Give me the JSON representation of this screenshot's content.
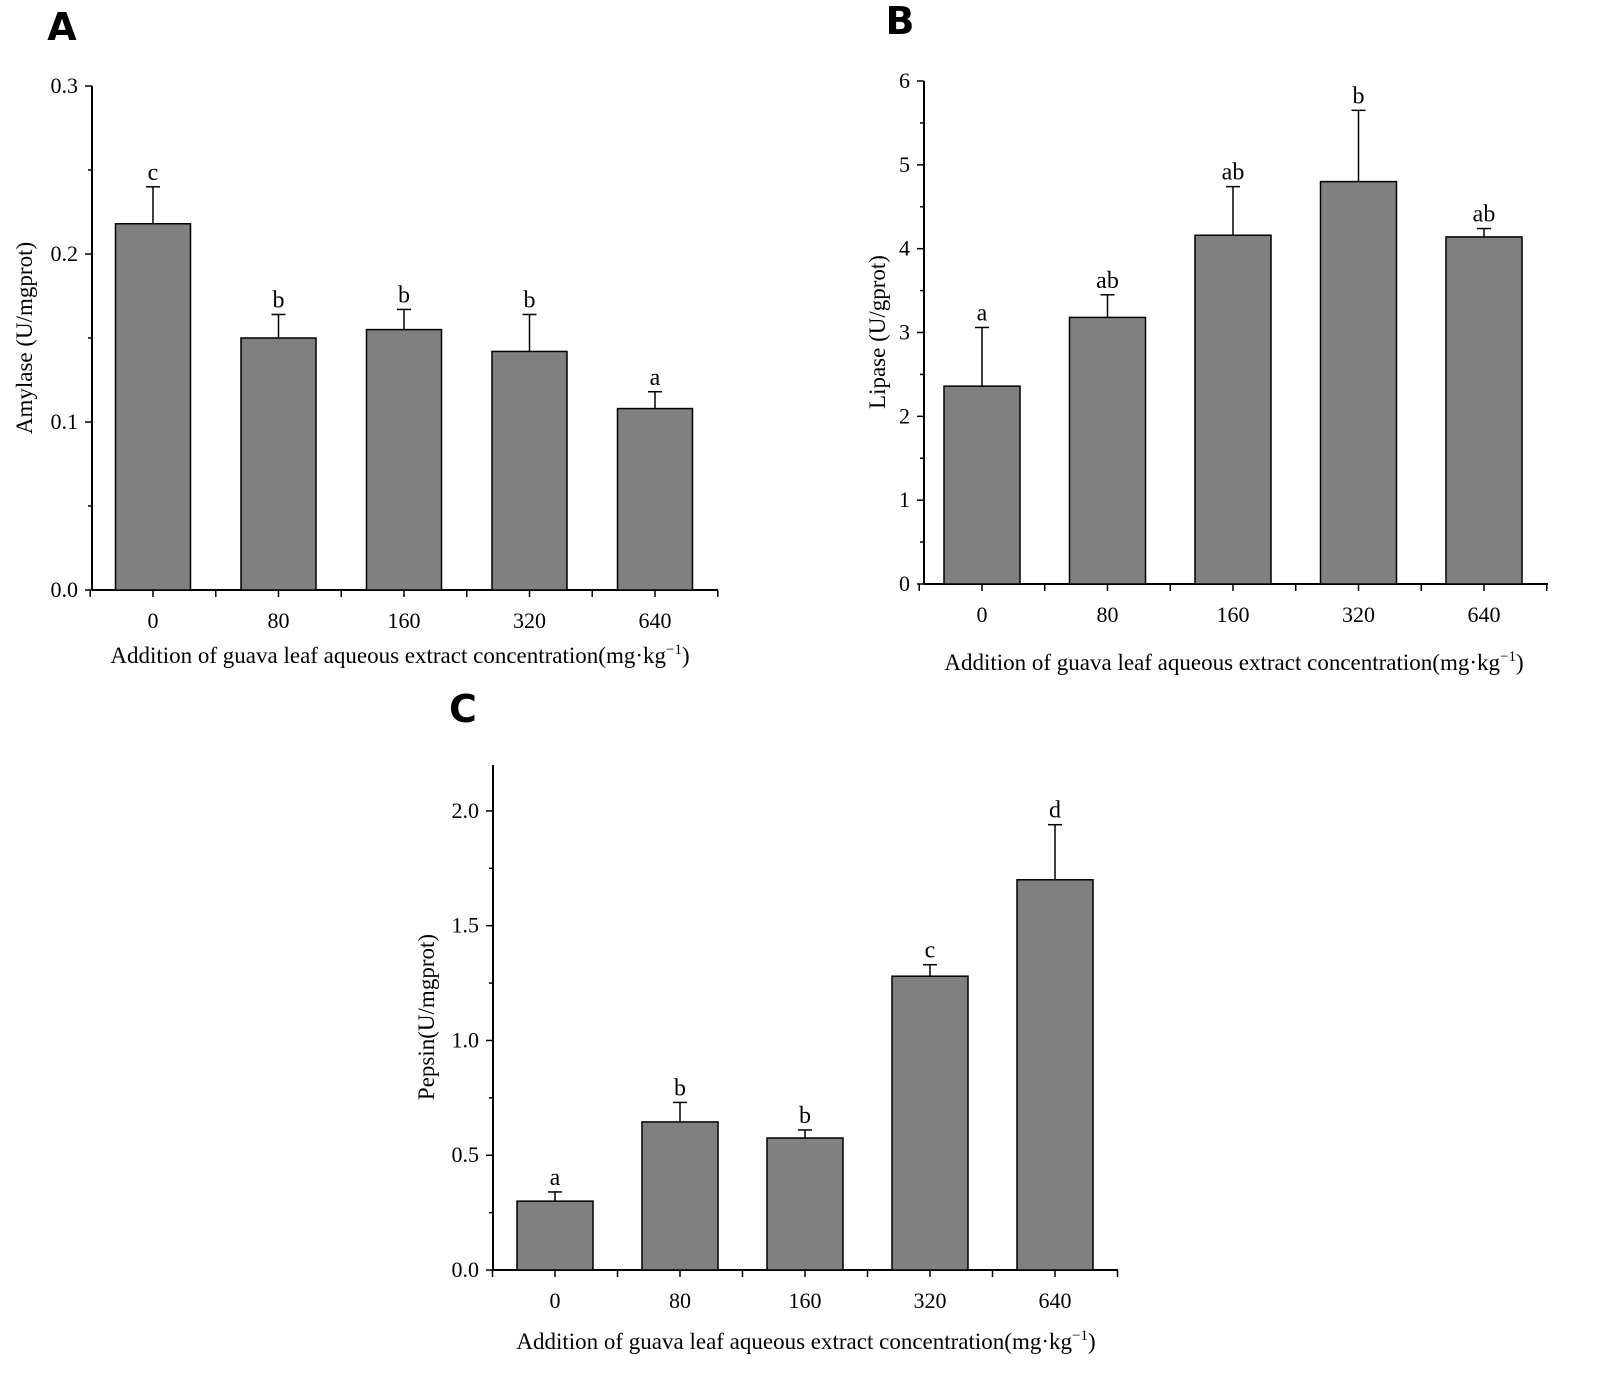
{
  "chart_data": [
    {
      "type": "bar",
      "panel": "A",
      "categories": [
        "0",
        "80",
        "160",
        "320",
        "640"
      ],
      "values": [
        0.218,
        0.15,
        0.155,
        0.142,
        0.108
      ],
      "errors": [
        0.022,
        0.014,
        0.012,
        0.022,
        0.01
      ],
      "significance": [
        "c",
        "b",
        "b",
        "b",
        "a"
      ],
      "xlabel": "Addition of guava leaf aqueous extract concentration(mg·kg",
      "xlabel_sup": "−1",
      "xlabel_close": ")",
      "ylabel": "Amylase (U/mgprot)",
      "ylim": [
        0,
        0.3
      ],
      "yticks": [
        "0.0",
        "0.1",
        "0.2",
        "0.3"
      ],
      "ytick_values": [
        0,
        0.1,
        0.2,
        0.3
      ]
    },
    {
      "type": "bar",
      "panel": "B",
      "categories": [
        "0",
        "80",
        "160",
        "320",
        "640"
      ],
      "values": [
        2.36,
        3.18,
        4.16,
        4.8,
        4.14
      ],
      "errors": [
        0.7,
        0.27,
        0.58,
        0.85,
        0.1
      ],
      "significance": [
        "a",
        "ab",
        "ab",
        "b",
        "ab"
      ],
      "xlabel": "Addition of guava leaf aqueous extract concentration(mg·kg",
      "xlabel_sup": "−1",
      "xlabel_close": ")",
      "ylabel": "Lipase (U/gprot)",
      "ylim": [
        0,
        6
      ],
      "yticks": [
        "0",
        "1",
        "2",
        "3",
        "4",
        "5",
        "6"
      ],
      "ytick_values": [
        0,
        1,
        2,
        3,
        4,
        5,
        6
      ]
    },
    {
      "type": "bar",
      "panel": "C",
      "categories": [
        "0",
        "80",
        "160",
        "320",
        "640"
      ],
      "values": [
        0.3,
        0.645,
        0.575,
        1.28,
        1.7
      ],
      "errors": [
        0.04,
        0.085,
        0.035,
        0.05,
        0.24
      ],
      "significance": [
        "a",
        "b",
        "b",
        "c",
        "d"
      ],
      "xlabel": "Addition of guava leaf aqueous extract concentration(mg·kg",
      "xlabel_sup": "−1",
      "xlabel_close": ")",
      "ylabel": "Pepsin(U/mgprot)",
      "ylim": [
        0,
        2.2
      ],
      "yticks": [
        "0.0",
        "0.5",
        "1.0",
        "1.5",
        "2.0"
      ],
      "ytick_values": [
        0,
        0.5,
        1.0,
        1.5,
        2.0
      ]
    }
  ]
}
